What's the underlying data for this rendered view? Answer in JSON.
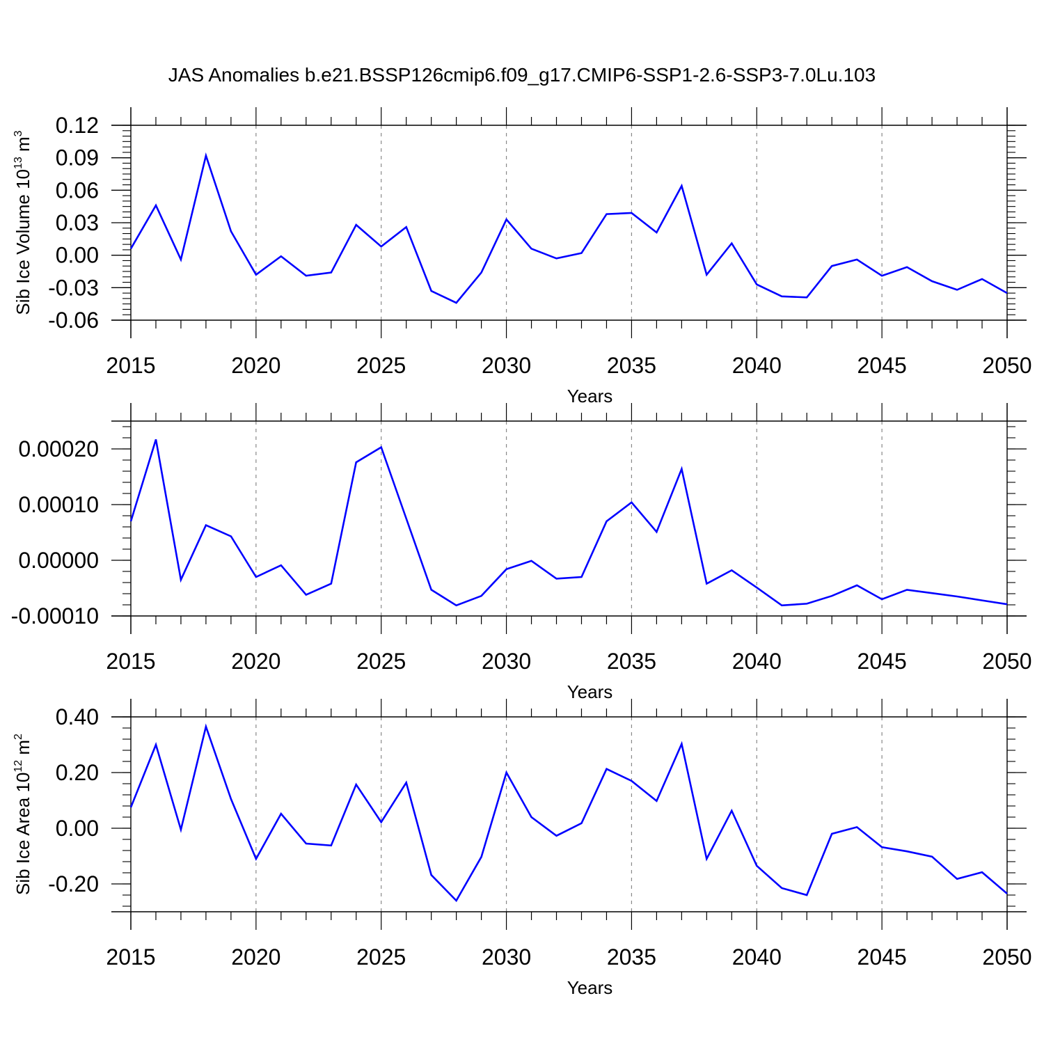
{
  "figure_title": "JAS Anomalies b.e21.BSSP126cmip6.f09_g17.CMIP6-SSP1-2.6-SSP3-7.0Lu.103",
  "colors": {
    "series": "#0000ff",
    "axis": "#000000",
    "grid": "#888888"
  },
  "chart_data": [
    {
      "type": "line",
      "title": "",
      "xlabel": "Years",
      "ylabel": {
        "main": "Sib Ice Volume 10",
        "sup": "13",
        "unit": " m",
        "unit_sup": "3"
      },
      "xlim": [
        2015,
        2050
      ],
      "ylim": [
        -0.06,
        0.12
      ],
      "yticks": [
        -0.06,
        -0.03,
        0.0,
        0.03,
        0.06,
        0.09,
        0.12
      ],
      "ytick_labels": [
        "-0.06",
        "-0.03",
        "0.00",
        "0.03",
        "0.06",
        "0.09",
        "0.12"
      ],
      "xticks": [
        2015,
        2020,
        2025,
        2030,
        2035,
        2040,
        2045,
        2050
      ],
      "xtick_labels": [
        "2015",
        "2020",
        "2025",
        "2030",
        "2035",
        "2040",
        "2045",
        "2050"
      ],
      "grid": "dashed vertical at major x ticks",
      "x": [
        2015,
        2016,
        2017,
        2018,
        2019,
        2020,
        2021,
        2022,
        2023,
        2024,
        2025,
        2026,
        2027,
        2028,
        2029,
        2030,
        2031,
        2032,
        2033,
        2034,
        2035,
        2036,
        2037,
        2038,
        2039,
        2040,
        2041,
        2042,
        2043,
        2044,
        2045,
        2046,
        2047,
        2048,
        2049,
        2050
      ],
      "y": [
        0.006,
        0.046,
        -0.004,
        0.092,
        0.022,
        -0.018,
        -0.001,
        -0.019,
        -0.016,
        0.028,
        0.008,
        0.026,
        -0.033,
        -0.044,
        -0.016,
        0.033,
        0.006,
        -0.003,
        0.002,
        0.038,
        0.039,
        0.021,
        0.064,
        -0.018,
        0.011,
        -0.027,
        -0.038,
        -0.039,
        -0.01,
        -0.004,
        -0.019,
        -0.011,
        -0.024,
        -0.032,
        -0.022,
        -0.035
      ]
    },
    {
      "type": "line",
      "title": "",
      "xlabel": "Years",
      "ylabel": {
        "main": "",
        "sup": "",
        "unit": "",
        "unit_sup": ""
      },
      "xlim": [
        2015,
        2050
      ],
      "ylim": [
        -0.0001,
        0.00025
      ],
      "yticks": [
        -0.0001,
        0.0,
        0.0001,
        0.0002
      ],
      "ytick_labels": [
        "-0.00010",
        "0.00000",
        "0.00010",
        "0.00020"
      ],
      "xticks": [
        2015,
        2020,
        2025,
        2030,
        2035,
        2040,
        2045,
        2050
      ],
      "xtick_labels": [
        "2015",
        "2020",
        "2025",
        "2030",
        "2035",
        "2040",
        "2045",
        "2050"
      ],
      "grid": "dashed vertical at major x ticks",
      "x": [
        2015,
        2016,
        2017,
        2018,
        2019,
        2020,
        2021,
        2022,
        2023,
        2024,
        2025,
        2026,
        2027,
        2028,
        2029,
        2030,
        2031,
        2032,
        2033,
        2034,
        2035,
        2036,
        2037,
        2038,
        2039,
        2040,
        2041,
        2042,
        2043,
        2044,
        2045,
        2046,
        2047,
        2048,
        2049,
        2050
      ],
      "y": [
        7e-05,
        0.000217,
        -3.5e-05,
        6.3e-05,
        4.3e-05,
        -3e-05,
        -9e-06,
        -6.2e-05,
        -4.2e-05,
        0.000176,
        0.000203,
        7.5e-05,
        -5.3e-05,
        -8.1e-05,
        -6.4e-05,
        -1.6e-05,
        -1e-06,
        -3.3e-05,
        -3e-05,
        7e-05,
        0.000104,
        5.1e-05,
        0.000164,
        -4.2e-05,
        -1.8e-05,
        -4.9e-05,
        -8.1e-05,
        -7.8e-05,
        -6.4e-05,
        -4.5e-05,
        -7e-05,
        -5.3e-05,
        -5.9e-05,
        -6.5e-05,
        -7.2e-05,
        -7.9e-05
      ]
    },
    {
      "type": "line",
      "title": "",
      "xlabel": "Years",
      "ylabel": {
        "main": "Sib Ice Area 10",
        "sup": "12",
        "unit": " m",
        "unit_sup": "2"
      },
      "xlim": [
        2015,
        2050
      ],
      "ylim": [
        -0.3,
        0.4
      ],
      "yticks": [
        -0.2,
        0.0,
        0.2,
        0.4
      ],
      "ytick_labels": [
        "-0.20",
        "0.00",
        "0.20",
        "0.40"
      ],
      "xticks": [
        2015,
        2020,
        2025,
        2030,
        2035,
        2040,
        2045,
        2050
      ],
      "xtick_labels": [
        "2015",
        "2020",
        "2025",
        "2030",
        "2035",
        "2040",
        "2045",
        "2050"
      ],
      "grid": "dashed vertical at major x ticks",
      "x": [
        2015,
        2016,
        2017,
        2018,
        2019,
        2020,
        2021,
        2022,
        2023,
        2024,
        2025,
        2026,
        2027,
        2028,
        2029,
        2030,
        2031,
        2032,
        2033,
        2034,
        2035,
        2036,
        2037,
        2038,
        2039,
        2040,
        2041,
        2042,
        2043,
        2044,
        2045,
        2046,
        2047,
        2048,
        2049,
        2050
      ],
      "y": [
        0.075,
        0.3,
        -0.005,
        0.365,
        0.105,
        -0.11,
        0.052,
        -0.055,
        -0.062,
        0.157,
        0.022,
        0.164,
        -0.168,
        -0.26,
        -0.103,
        0.2,
        0.04,
        -0.027,
        0.018,
        0.213,
        0.17,
        0.098,
        0.303,
        -0.11,
        0.063,
        -0.135,
        -0.215,
        -0.24,
        -0.02,
        0.004,
        -0.068,
        -0.083,
        -0.102,
        -0.182,
        -0.158,
        -0.235
      ]
    }
  ]
}
